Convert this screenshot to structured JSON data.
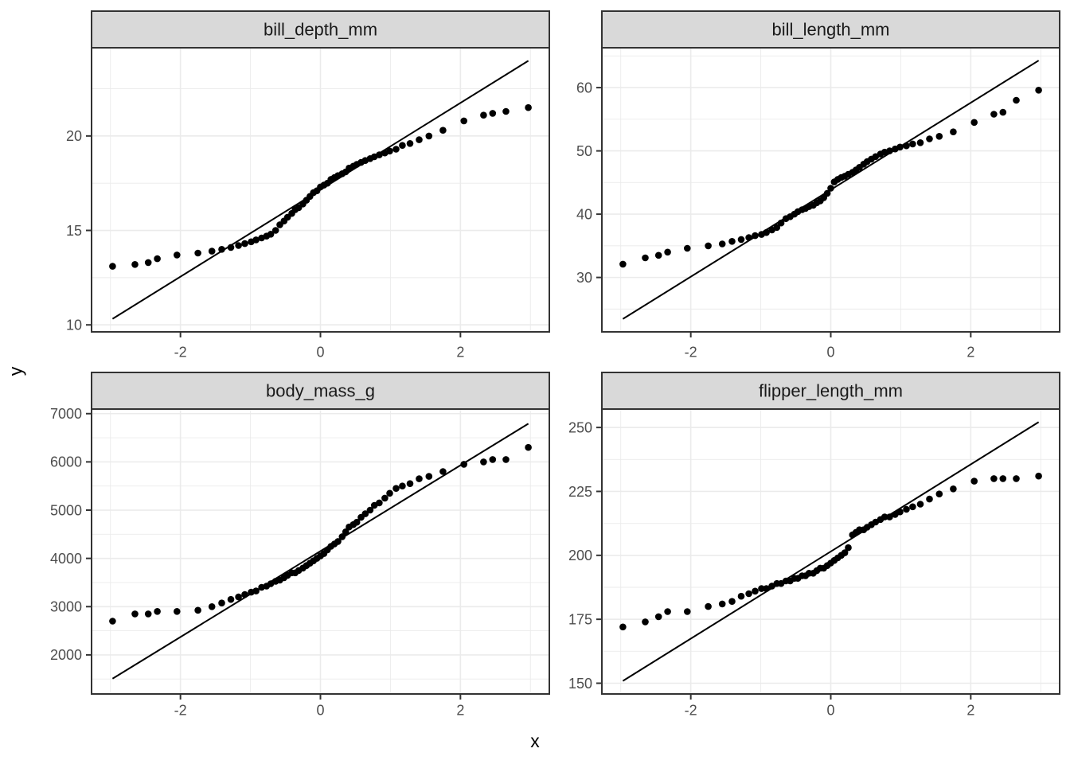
{
  "figure": {
    "xlabel": "x",
    "ylabel": "y"
  },
  "style": {
    "background": "#FFFFFF",
    "point_color": "#000000",
    "line_color": "#000000",
    "strip_fill": "#D9D9D9",
    "strip_border": "#333333",
    "strip_text_color": "#1A1A1A",
    "panel_fill": "#FFFFFF",
    "panel_border": "#333333",
    "grid_color": "#EBEBEB",
    "tick_color": "#333333",
    "tick_label_color": "#4D4D4D"
  },
  "chart_data": [
    {
      "type": "scatter",
      "subtype": "qq-plot",
      "title": "bill_depth_mm",
      "xlabel": "x",
      "ylabel": "y",
      "x_range": [
        -3.27,
        3.27
      ],
      "y_range": [
        9.63,
        24.67
      ],
      "x_ticks": [
        -2,
        0,
        2
      ],
      "x_minor": [
        -3,
        -1,
        1,
        3
      ],
      "y_ticks": [
        10,
        15,
        20
      ],
      "y_minor": [
        12.5,
        17.5,
        22.5
      ],
      "grid": true,
      "legend": "none",
      "ref_line": {
        "x1": -2.97,
        "y1": 10.32,
        "x2": 2.97,
        "y2": 23.98
      },
      "points": [
        [
          -2.97,
          13.1
        ],
        [
          -2.65,
          13.2
        ],
        [
          -2.46,
          13.3
        ],
        [
          -2.33,
          13.5
        ],
        [
          -2.05,
          13.7
        ],
        [
          -1.75,
          13.8
        ],
        [
          -1.55,
          13.9
        ],
        [
          -1.41,
          14.0
        ],
        [
          -1.28,
          14.1
        ],
        [
          -1.17,
          14.2
        ],
        [
          -1.08,
          14.3
        ],
        [
          -0.99,
          14.4
        ],
        [
          -0.92,
          14.5
        ],
        [
          -0.84,
          14.6
        ],
        [
          -0.77,
          14.7
        ],
        [
          -0.71,
          14.8
        ],
        [
          -0.64,
          15.0
        ],
        [
          -0.58,
          15.3
        ],
        [
          -0.52,
          15.5
        ],
        [
          -0.47,
          15.7
        ],
        [
          -0.41,
          15.9
        ],
        [
          -0.36,
          16.1
        ],
        [
          -0.31,
          16.2
        ],
        [
          -0.25,
          16.4
        ],
        [
          -0.2,
          16.6
        ],
        [
          -0.15,
          16.8
        ],
        [
          -0.1,
          17.0
        ],
        [
          -0.05,
          17.1
        ],
        [
          0,
          17.3
        ],
        [
          0.05,
          17.4
        ],
        [
          0.1,
          17.5
        ],
        [
          0.15,
          17.7
        ],
        [
          0.2,
          17.8
        ],
        [
          0.25,
          17.9
        ],
        [
          0.31,
          18.0
        ],
        [
          0.36,
          18.1
        ],
        [
          0.41,
          18.3
        ],
        [
          0.47,
          18.4
        ],
        [
          0.52,
          18.5
        ],
        [
          0.58,
          18.6
        ],
        [
          0.64,
          18.7
        ],
        [
          0.71,
          18.8
        ],
        [
          0.77,
          18.9
        ],
        [
          0.84,
          19.0
        ],
        [
          0.92,
          19.1
        ],
        [
          0.99,
          19.2
        ],
        [
          1.08,
          19.3
        ],
        [
          1.17,
          19.5
        ],
        [
          1.28,
          19.6
        ],
        [
          1.41,
          19.8
        ],
        [
          1.55,
          20.0
        ],
        [
          1.75,
          20.3
        ],
        [
          2.05,
          20.8
        ],
        [
          2.33,
          21.1
        ],
        [
          2.46,
          21.2
        ],
        [
          2.65,
          21.3
        ],
        [
          2.97,
          21.5
        ]
      ]
    },
    {
      "type": "scatter",
      "subtype": "qq-plot",
      "title": "bill_length_mm",
      "xlabel": "x",
      "ylabel": "y",
      "x_range": [
        -3.27,
        3.27
      ],
      "y_range": [
        21.4,
        66.3
      ],
      "x_ticks": [
        -2,
        0,
        2
      ],
      "x_minor": [
        -3,
        -1,
        1,
        3
      ],
      "y_ticks": [
        30,
        40,
        50,
        60
      ],
      "y_minor": [
        25,
        35,
        45,
        55,
        65
      ],
      "grid": true,
      "legend": "none",
      "ref_line": {
        "x1": -2.97,
        "y1": 23.44,
        "x2": 2.97,
        "y2": 64.28
      },
      "points": [
        [
          -2.97,
          32.1
        ],
        [
          -2.65,
          33.1
        ],
        [
          -2.46,
          33.5
        ],
        [
          -2.33,
          34.0
        ],
        [
          -2.05,
          34.6
        ],
        [
          -1.75,
          35.0
        ],
        [
          -1.55,
          35.3
        ],
        [
          -1.41,
          35.7
        ],
        [
          -1.28,
          36.0
        ],
        [
          -1.17,
          36.3
        ],
        [
          -1.08,
          36.6
        ],
        [
          -0.99,
          36.8
        ],
        [
          -0.92,
          37.1
        ],
        [
          -0.84,
          37.5
        ],
        [
          -0.77,
          37.9
        ],
        [
          -0.71,
          38.6
        ],
        [
          -0.64,
          39.3
        ],
        [
          -0.58,
          39.6
        ],
        [
          -0.52,
          40.0
        ],
        [
          -0.47,
          40.4
        ],
        [
          -0.41,
          40.7
        ],
        [
          -0.36,
          40.9
        ],
        [
          -0.31,
          41.2
        ],
        [
          -0.25,
          41.4
        ],
        [
          -0.2,
          41.8
        ],
        [
          -0.15,
          42.1
        ],
        [
          -0.1,
          42.6
        ],
        [
          -0.05,
          43.3
        ],
        [
          0,
          44.1
        ],
        [
          0.05,
          45.1
        ],
        [
          0.1,
          45.5
        ],
        [
          0.15,
          45.8
        ],
        [
          0.2,
          46.0
        ],
        [
          0.25,
          46.3
        ],
        [
          0.31,
          46.6
        ],
        [
          0.36,
          47.0
        ],
        [
          0.41,
          47.4
        ],
        [
          0.47,
          47.9
        ],
        [
          0.52,
          48.3
        ],
        [
          0.58,
          48.7
        ],
        [
          0.64,
          49.1
        ],
        [
          0.71,
          49.5
        ],
        [
          0.77,
          49.8
        ],
        [
          0.84,
          50.0
        ],
        [
          0.92,
          50.3
        ],
        [
          0.99,
          50.6
        ],
        [
          1.08,
          50.8
        ],
        [
          1.17,
          51.1
        ],
        [
          1.28,
          51.3
        ],
        [
          1.41,
          51.9
        ],
        [
          1.55,
          52.3
        ],
        [
          1.75,
          53.0
        ],
        [
          2.05,
          54.5
        ],
        [
          2.33,
          55.8
        ],
        [
          2.46,
          56.1
        ],
        [
          2.65,
          58.0
        ],
        [
          2.97,
          59.6
        ]
      ]
    },
    {
      "type": "scatter",
      "subtype": "qq-plot",
      "title": "body_mass_g",
      "xlabel": "x",
      "ylabel": "y",
      "x_range": [
        -3.27,
        3.27
      ],
      "y_range": [
        1190,
        7095
      ],
      "x_ticks": [
        -2,
        0,
        2
      ],
      "x_minor": [
        -3,
        -1,
        1,
        3
      ],
      "y_ticks": [
        2000,
        3000,
        4000,
        5000,
        6000,
        7000
      ],
      "y_minor": [
        1500,
        2500,
        3500,
        4500,
        5500,
        6500
      ],
      "grid": true,
      "legend": "none",
      "ref_line": {
        "x1": -2.97,
        "y1": 1508,
        "x2": 2.97,
        "y2": 6792
      },
      "points": [
        [
          -2.97,
          2700
        ],
        [
          -2.65,
          2850
        ],
        [
          -2.46,
          2850
        ],
        [
          -2.33,
          2900
        ],
        [
          -2.05,
          2900
        ],
        [
          -1.75,
          2925
        ],
        [
          -1.55,
          3000
        ],
        [
          -1.41,
          3075
        ],
        [
          -1.28,
          3150
        ],
        [
          -1.17,
          3200
        ],
        [
          -1.08,
          3250
        ],
        [
          -0.99,
          3300
        ],
        [
          -0.92,
          3325
        ],
        [
          -0.84,
          3400
        ],
        [
          -0.77,
          3425
        ],
        [
          -0.71,
          3475
        ],
        [
          -0.64,
          3525
        ],
        [
          -0.58,
          3550
        ],
        [
          -0.52,
          3600
        ],
        [
          -0.47,
          3650
        ],
        [
          -0.41,
          3700
        ],
        [
          -0.36,
          3700
        ],
        [
          -0.31,
          3750
        ],
        [
          -0.25,
          3800
        ],
        [
          -0.2,
          3850
        ],
        [
          -0.15,
          3900
        ],
        [
          -0.1,
          3950
        ],
        [
          -0.05,
          4000
        ],
        [
          0,
          4050
        ],
        [
          0.05,
          4100
        ],
        [
          0.1,
          4175
        ],
        [
          0.15,
          4250
        ],
        [
          0.2,
          4300
        ],
        [
          0.25,
          4350
        ],
        [
          0.31,
          4450
        ],
        [
          0.36,
          4550
        ],
        [
          0.41,
          4650
        ],
        [
          0.47,
          4700
        ],
        [
          0.52,
          4750
        ],
        [
          0.58,
          4850
        ],
        [
          0.64,
          4925
        ],
        [
          0.71,
          5000
        ],
        [
          0.77,
          5100
        ],
        [
          0.84,
          5150
        ],
        [
          0.92,
          5250
        ],
        [
          0.99,
          5350
        ],
        [
          1.08,
          5450
        ],
        [
          1.17,
          5500
        ],
        [
          1.28,
          5550
        ],
        [
          1.41,
          5650
        ],
        [
          1.55,
          5700
        ],
        [
          1.75,
          5800
        ],
        [
          2.05,
          5950
        ],
        [
          2.33,
          6000
        ],
        [
          2.46,
          6050
        ],
        [
          2.65,
          6050
        ],
        [
          2.97,
          6300
        ]
      ]
    },
    {
      "type": "scatter",
      "subtype": "qq-plot",
      "title": "flipper_length_mm",
      "xlabel": "x",
      "ylabel": "y",
      "x_range": [
        -3.27,
        3.27
      ],
      "y_range": [
        145.8,
        257.2
      ],
      "x_ticks": [
        -2,
        0,
        2
      ],
      "x_minor": [
        -3,
        -1,
        1,
        3
      ],
      "y_ticks": [
        150,
        175,
        200,
        225,
        250
      ],
      "y_minor": [
        162.5,
        187.5,
        212.5,
        237.5
      ],
      "grid": true,
      "legend": "none",
      "ref_line": {
        "x1": -2.97,
        "y1": 150.9,
        "x2": 2.97,
        "y2": 252.1
      },
      "points": [
        [
          -2.97,
          172
        ],
        [
          -2.65,
          174
        ],
        [
          -2.46,
          176
        ],
        [
          -2.33,
          178
        ],
        [
          -2.05,
          178
        ],
        [
          -1.75,
          180
        ],
        [
          -1.55,
          181
        ],
        [
          -1.41,
          182
        ],
        [
          -1.28,
          184
        ],
        [
          -1.17,
          185
        ],
        [
          -1.08,
          186
        ],
        [
          -0.99,
          187
        ],
        [
          -0.92,
          187
        ],
        [
          -0.84,
          188
        ],
        [
          -0.77,
          189
        ],
        [
          -0.71,
          189
        ],
        [
          -0.64,
          190
        ],
        [
          -0.58,
          190
        ],
        [
          -0.52,
          191
        ],
        [
          -0.47,
          191
        ],
        [
          -0.41,
          192
        ],
        [
          -0.36,
          192
        ],
        [
          -0.31,
          193
        ],
        [
          -0.25,
          193
        ],
        [
          -0.2,
          194
        ],
        [
          -0.15,
          195
        ],
        [
          -0.1,
          195
        ],
        [
          -0.05,
          196
        ],
        [
          0,
          197
        ],
        [
          0.05,
          198
        ],
        [
          0.1,
          199
        ],
        [
          0.15,
          200
        ],
        [
          0.2,
          201
        ],
        [
          0.25,
          203
        ],
        [
          0.31,
          208
        ],
        [
          0.36,
          209
        ],
        [
          0.41,
          210
        ],
        [
          0.47,
          210
        ],
        [
          0.52,
          211
        ],
        [
          0.58,
          212
        ],
        [
          0.64,
          213
        ],
        [
          0.71,
          214
        ],
        [
          0.77,
          215
        ],
        [
          0.84,
          215
        ],
        [
          0.92,
          216
        ],
        [
          0.99,
          217
        ],
        [
          1.08,
          218
        ],
        [
          1.17,
          219
        ],
        [
          1.28,
          220
        ],
        [
          1.41,
          222
        ],
        [
          1.55,
          224
        ],
        [
          1.75,
          226
        ],
        [
          2.05,
          229
        ],
        [
          2.33,
          230
        ],
        [
          2.46,
          230
        ],
        [
          2.65,
          230
        ],
        [
          2.97,
          231
        ]
      ]
    }
  ]
}
